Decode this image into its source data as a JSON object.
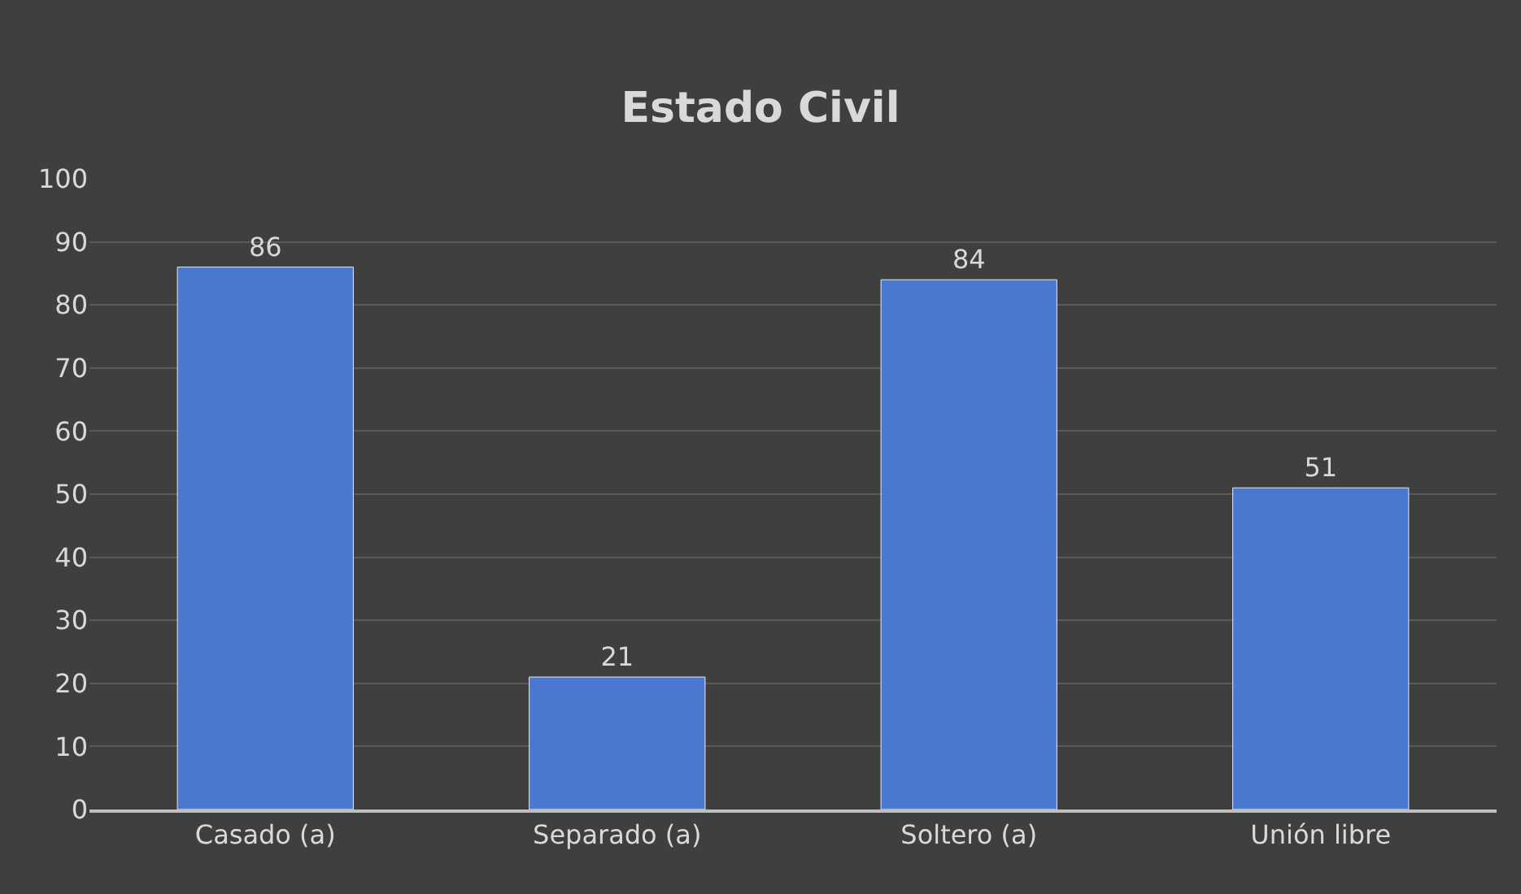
{
  "chart_data": {
    "type": "bar",
    "title": "Estado Civil",
    "categories": [
      "Casado (a)",
      "Separado (a)",
      "Soltero (a)",
      "Unión libre"
    ],
    "values": [
      86,
      21,
      84,
      51
    ],
    "color": "#4a78d0",
    "ylim": [
      0,
      100
    ],
    "yticks": [
      0,
      10,
      20,
      30,
      40,
      50,
      60,
      70,
      80,
      90,
      100
    ],
    "grid": "y",
    "data_labels": true,
    "legend": false
  }
}
